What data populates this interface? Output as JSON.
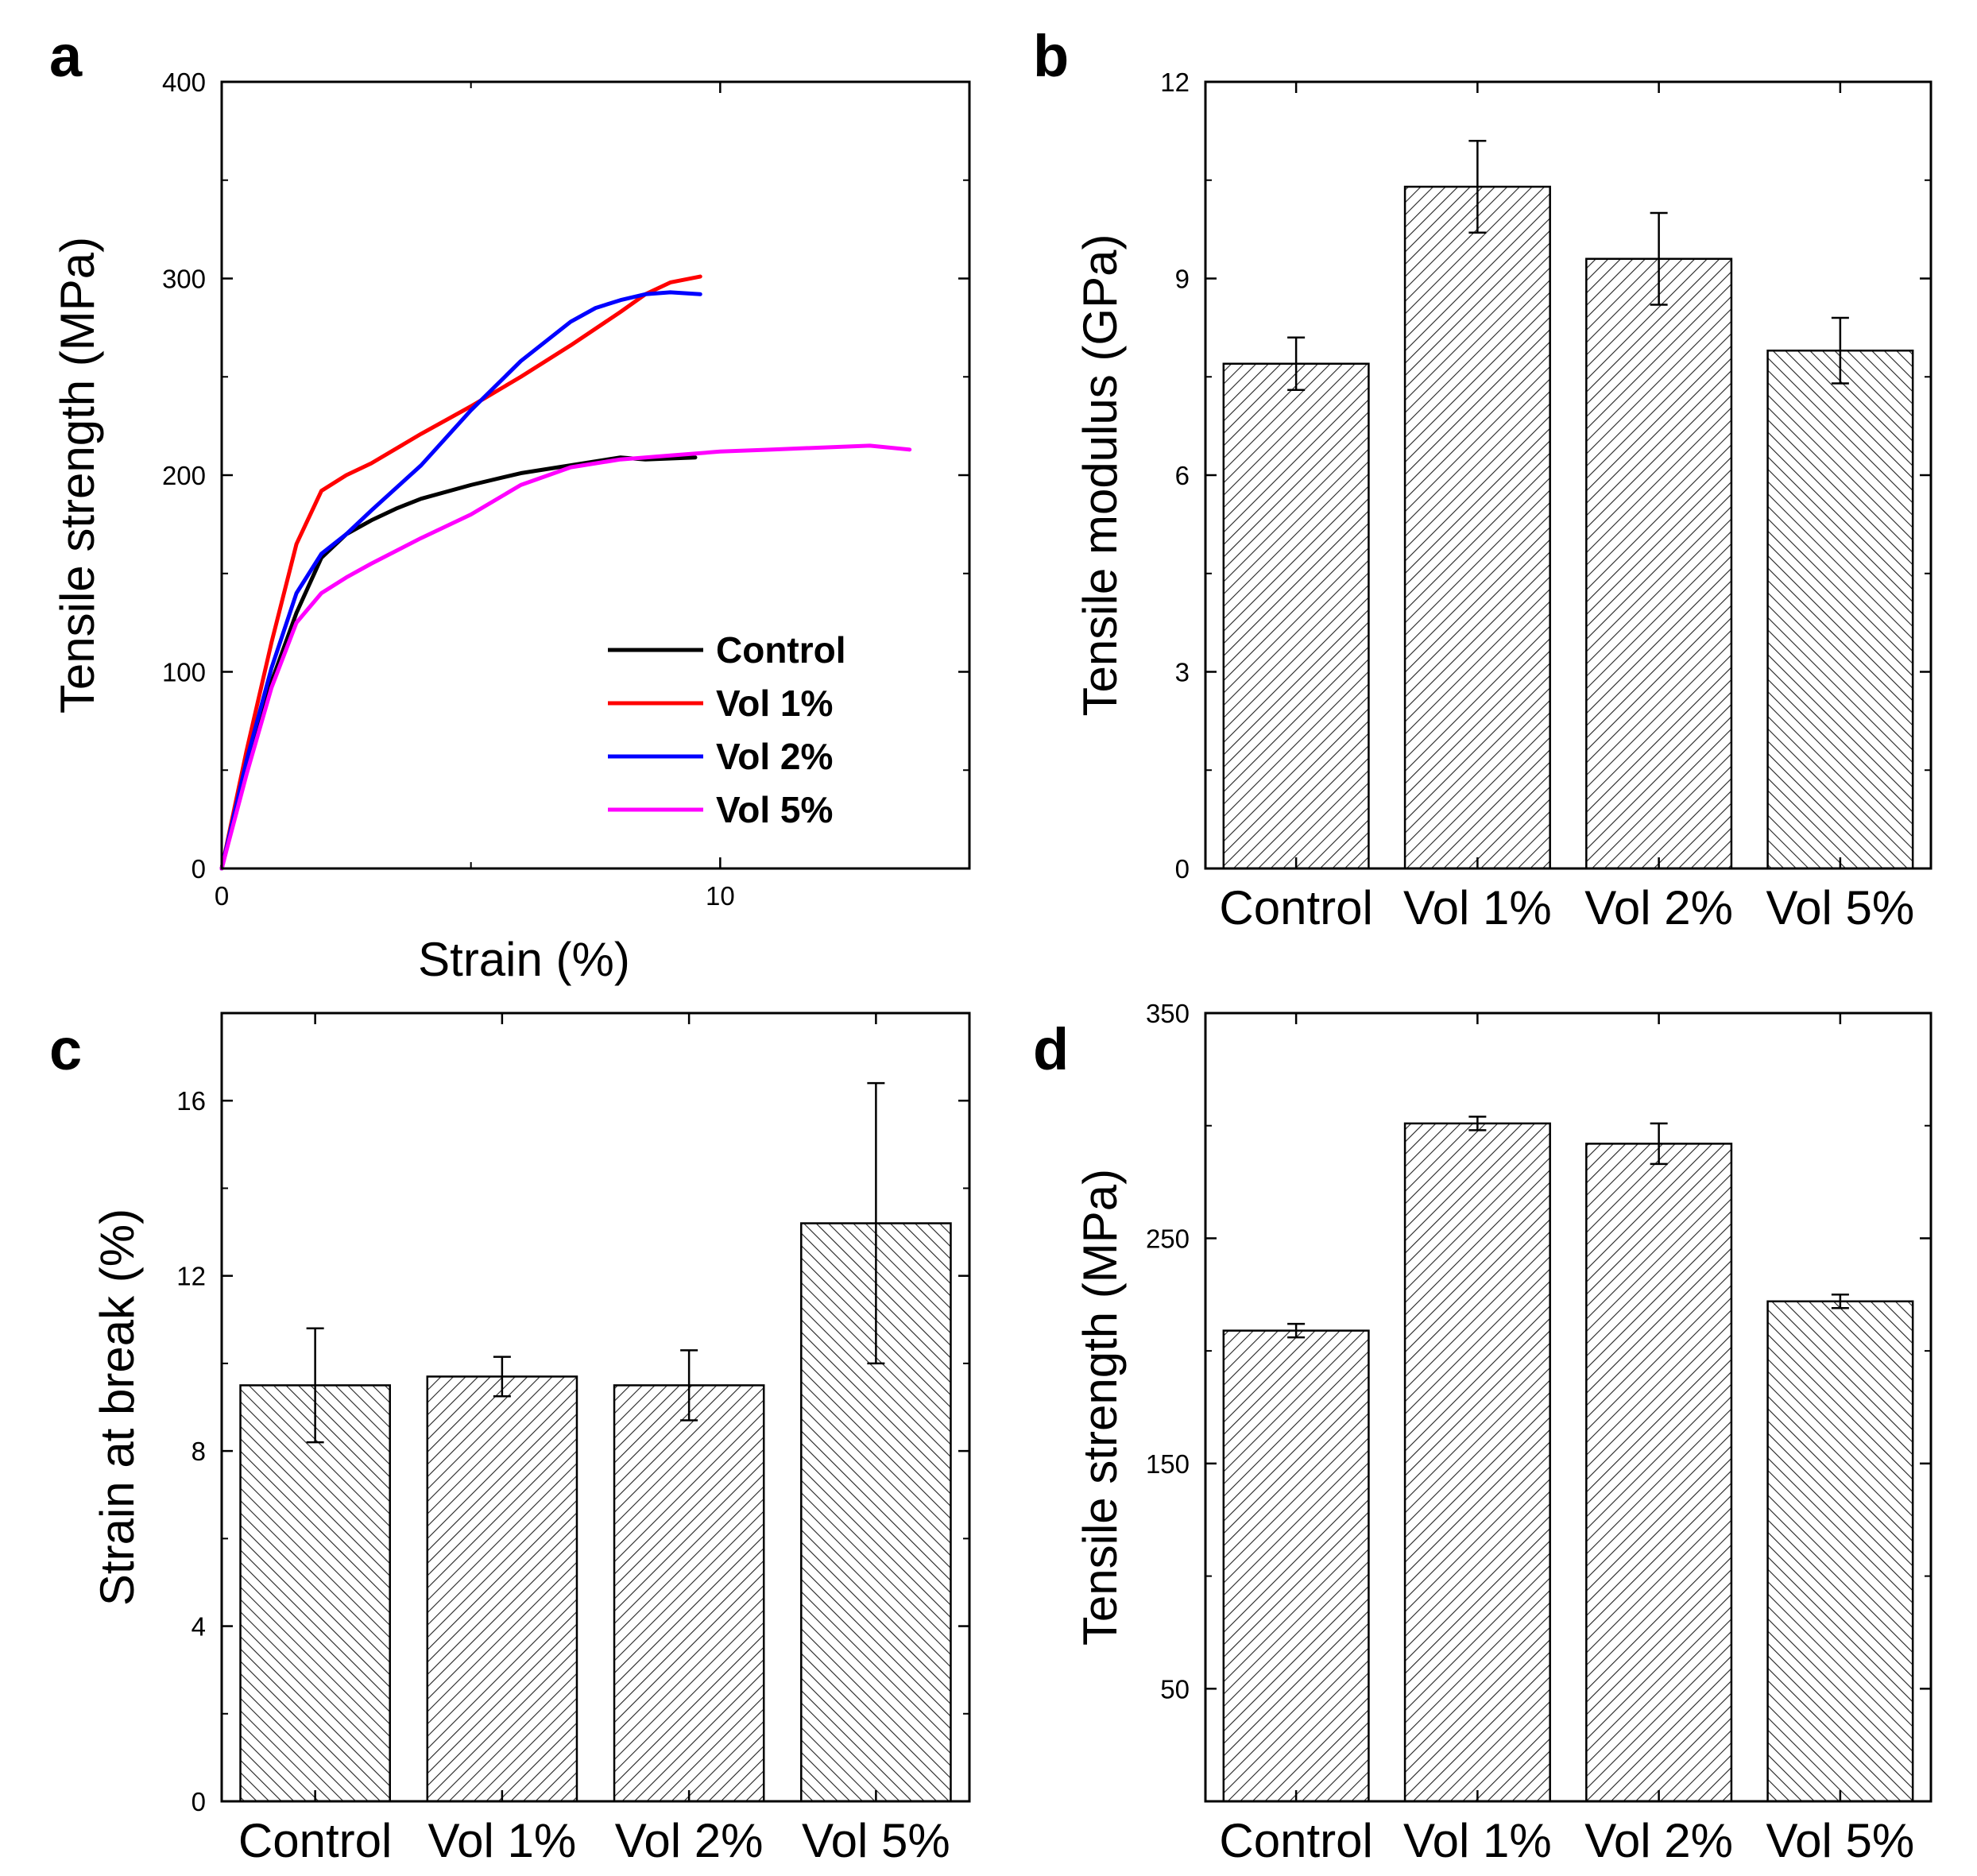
{
  "chart_data": [
    {
      "panel": "a",
      "type": "line",
      "xlabel": "Strain (%)",
      "ylabel": "Tensile strength (MPa)",
      "xlim": [
        0,
        15
      ],
      "ylim": [
        0,
        400
      ],
      "xticks": [
        0,
        10
      ],
      "yticks": [
        0,
        100,
        200,
        300,
        400
      ],
      "legend_position": "bottom-right",
      "series": [
        {
          "name": "Control",
          "color": "#000000",
          "x": [
            0,
            0.5,
            1.0,
            1.5,
            2.0,
            2.5,
            3.0,
            3.5,
            4.0,
            5.0,
            6.0,
            7.0,
            8.0,
            8.5,
            9.5
          ],
          "y": [
            0,
            50,
            95,
            130,
            158,
            170,
            177,
            183,
            188,
            195,
            201,
            205,
            209,
            208,
            209
          ]
        },
        {
          "name": "Vol 1%",
          "color": "#ff0000",
          "x": [
            0,
            0.5,
            1.0,
            1.5,
            2.0,
            2.5,
            3.0,
            4.0,
            5.0,
            6.0,
            7.0,
            8.0,
            8.5,
            9.0,
            9.6
          ],
          "y": [
            0,
            60,
            115,
            165,
            192,
            200,
            206,
            221,
            235,
            250,
            266,
            283,
            292,
            298,
            301
          ]
        },
        {
          "name": "Vol 2%",
          "color": "#0000ff",
          "x": [
            0,
            0.5,
            1.0,
            1.5,
            2.0,
            2.5,
            3.0,
            4.0,
            5.0,
            6.0,
            7.0,
            7.5,
            8.0,
            8.5,
            9.0,
            9.6
          ],
          "y": [
            0,
            55,
            102,
            140,
            160,
            170,
            182,
            205,
            233,
            258,
            278,
            285,
            289,
            292,
            293,
            292
          ]
        },
        {
          "name": "Vol 5%",
          "color": "#ff00ff",
          "x": [
            0,
            0.5,
            1.0,
            1.5,
            2.0,
            2.5,
            3.0,
            4.0,
            5.0,
            6.0,
            7.0,
            8.0,
            9.0,
            10.0,
            11.0,
            12.0,
            13.0,
            13.8
          ],
          "y": [
            0,
            48,
            92,
            125,
            140,
            148,
            155,
            168,
            180,
            195,
            204,
            208,
            210,
            212,
            213,
            214,
            215,
            213
          ]
        }
      ]
    },
    {
      "panel": "b",
      "type": "bar",
      "ylabel": "Tensile modulus (GPa)",
      "categories": [
        "Control",
        "Vol 1%",
        "Vol 2%",
        "Vol 5%"
      ],
      "values": [
        7.7,
        10.4,
        9.3,
        7.9
      ],
      "errors": [
        0.4,
        0.7,
        0.7,
        0.5
      ],
      "hatch": [
        "forward",
        "forward",
        "forward",
        "back"
      ],
      "ylim": [
        0,
        12
      ],
      "yticks": [
        0,
        3,
        6,
        9,
        12
      ]
    },
    {
      "panel": "c",
      "type": "bar",
      "ylabel": "Strain at break (%)",
      "categories": [
        "Control",
        "Vol 1%",
        "Vol 2%",
        "Vol 5%"
      ],
      "values": [
        9.5,
        9.7,
        9.5,
        13.2
      ],
      "errors": [
        1.3,
        0.45,
        0.8,
        3.2
      ],
      "hatch": [
        "back",
        "forward",
        "forward",
        "back"
      ],
      "ylim": [
        0,
        18
      ],
      "yticks": [
        0,
        4,
        8,
        12,
        16
      ]
    },
    {
      "panel": "d",
      "type": "bar",
      "ylabel": "Tensile strength (MPa)",
      "categories": [
        "Control",
        "Vol 1%",
        "Vol 2%",
        "Vol 5%"
      ],
      "values": [
        209,
        301,
        292,
        222
      ],
      "errors": [
        3,
        3,
        9,
        3
      ],
      "hatch": [
        "forward",
        "forward",
        "forward",
        "back"
      ],
      "ylim": [
        0,
        350
      ],
      "yticks": [
        50,
        150,
        250,
        350
      ]
    }
  ]
}
